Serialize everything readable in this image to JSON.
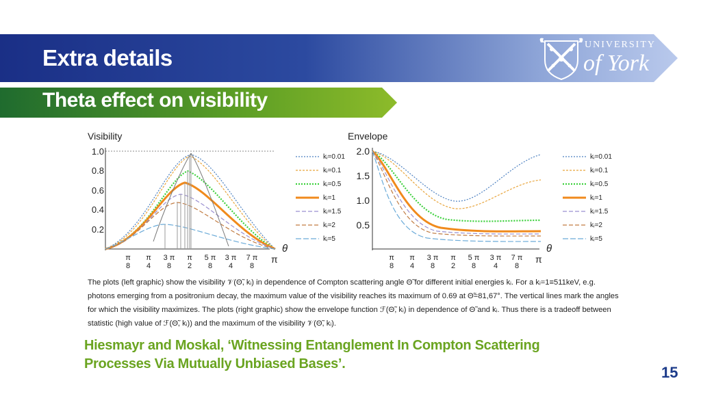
{
  "header": {
    "title": "Extra details",
    "subtitle": "Theta effect on visibility"
  },
  "logo": {
    "line1": "UNIVERSITY",
    "line2": "of York"
  },
  "left_chart": {
    "ylabel": "Visibility",
    "xlabel": "θ",
    "yticks": [
      "1.0",
      "0.8",
      "0.6",
      "0.4",
      "0.2"
    ],
    "xticks_num": [
      "π",
      "π",
      "3 π",
      "π",
      "5 π",
      "3 π",
      "7 π"
    ],
    "xticks_den": [
      "8",
      "4",
      "8",
      "2",
      "8",
      "4",
      "8"
    ],
    "xend": "π"
  },
  "right_chart": {
    "ylabel": "Envelope",
    "xlabel": "θ",
    "yticks": [
      "2.0",
      "1.5",
      "1.0",
      "0.5"
    ],
    "xticks_num": [
      "π",
      "π",
      "3 π",
      "π",
      "5 π",
      "3 π",
      "7 π"
    ],
    "xticks_den": [
      "8",
      "4",
      "8",
      "2",
      "8",
      "4",
      "8"
    ],
    "xend": "π"
  },
  "legend": [
    "kᵢ=0.01",
    "kᵢ=0.1",
    "kᵢ=0.5",
    "kᵢ=1",
    "kᵢ=1.5",
    "kᵢ=2",
    "kᵢ=5"
  ],
  "caption": "The plots (left graphic) show the visibility 𝒱(Θ̃, kᵢ) in dependence of Compton scattering angle Θ̃ for different initial energies kᵢ. For a kᵢ=1≡511keV, e.g. photons emerging from a positronium decay, the maximum value of the visibility reaches its maximum of 0.69 at Θ̃=81,67°. The vertical lines mark the angles for which the visibility maximizes. The plots (right graphic) show the envelope function ℱ(Θ̃, kᵢ) in dependence of Θ̃ and kᵢ. Thus there is a tradeoff between statistic (high value of ℱ(Θ̃, kᵢ)) and the maximum of the visibility 𝒱(Θ̃, kᵢ).",
  "reference": "Hiesmayr and Moskal, ‘Witnessing Entanglement In Compton Scattering Processes Via Mutually Unbiased Bases’.",
  "page_number": "15"
}
